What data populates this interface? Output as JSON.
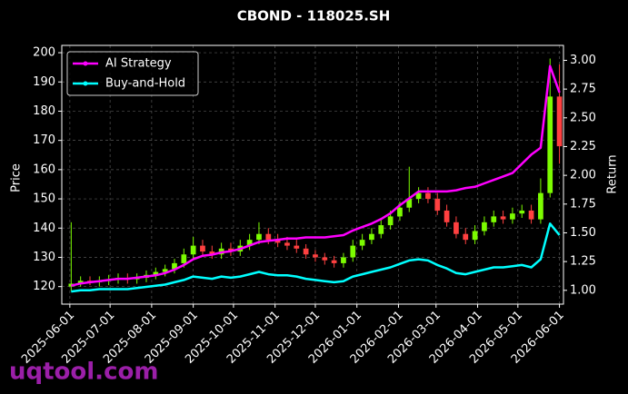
{
  "chart_data": {
    "type": "candlestick",
    "title": "CBOND - 118025.SH",
    "ylabel": "Price",
    "y2label": "Return",
    "watermark": "uqtool.com",
    "x": [
      "2025-06-02",
      "2025-06-09",
      "2025-06-16",
      "2025-06-23",
      "2025-06-30",
      "2025-07-07",
      "2025-07-14",
      "2025-07-21",
      "2025-07-28",
      "2025-08-04",
      "2025-08-11",
      "2025-08-18",
      "2025-08-25",
      "2025-09-01",
      "2025-09-08",
      "2025-09-15",
      "2025-09-22",
      "2025-09-29",
      "2025-10-06",
      "2025-10-13",
      "2025-10-20",
      "2025-10-27",
      "2025-11-03",
      "2025-11-10",
      "2025-11-17",
      "2025-11-24",
      "2025-12-01",
      "2025-12-08",
      "2025-12-15",
      "2025-12-22",
      "2025-12-29",
      "2026-01-05",
      "2026-01-12",
      "2026-01-19",
      "2026-01-26",
      "2026-02-02",
      "2026-02-09",
      "2026-02-16",
      "2026-02-23",
      "2026-03-02",
      "2026-03-09",
      "2026-03-16",
      "2026-03-23",
      "2026-03-30",
      "2026-04-06",
      "2026-04-13",
      "2026-04-20",
      "2026-04-27",
      "2026-05-04",
      "2026-05-11",
      "2026-05-18",
      "2026-05-25",
      "2026-06-01"
    ],
    "open": [
      120,
      121,
      122,
      121.5,
      122,
      122.5,
      123,
      122.5,
      123,
      124,
      125,
      126,
      128,
      131,
      134,
      132,
      131,
      133,
      132,
      134,
      136,
      138,
      136,
      135,
      134,
      133,
      131,
      130,
      129,
      128,
      130,
      134,
      136,
      138,
      141,
      144,
      147,
      150,
      152,
      150,
      146,
      142,
      138,
      136,
      139,
      142,
      144,
      143,
      145,
      146,
      143,
      152,
      185
    ],
    "high": [
      142,
      123.5,
      123.5,
      123.5,
      124,
      124.5,
      124.5,
      124.5,
      125.5,
      126.5,
      127.5,
      129.5,
      133,
      137,
      136,
      134,
      135,
      135,
      136,
      138,
      142,
      140,
      138,
      137,
      136,
      134.5,
      132.5,
      131.5,
      130.5,
      131.5,
      136,
      138,
      140,
      143,
      146,
      149,
      161,
      154,
      154,
      152,
      148,
      144,
      140,
      141,
      144,
      146,
      146,
      147,
      148,
      148,
      157,
      198,
      196
    ],
    "low": [
      118.5,
      120,
      120.5,
      120,
      120.5,
      121,
      121,
      121,
      121.5,
      122.5,
      123.5,
      124.5,
      126.5,
      129.5,
      130.5,
      129.5,
      129.5,
      130.5,
      130.5,
      132.5,
      134.5,
      134.5,
      133.5,
      132.5,
      131.5,
      129.5,
      128.5,
      127.5,
      126.5,
      126.5,
      128.5,
      132.5,
      134.5,
      136.5,
      139.5,
      142.5,
      145.5,
      148.5,
      148.5,
      144.5,
      140.5,
      136.5,
      134.5,
      134.5,
      137.5,
      140.5,
      141.5,
      141.5,
      143.5,
      141.5,
      141.5,
      150.5,
      162
    ],
    "close": [
      121,
      122,
      121.5,
      122,
      122.5,
      123,
      122.5,
      123,
      124,
      125,
      126,
      128,
      131,
      134,
      132,
      131,
      133,
      132,
      134,
      136,
      138,
      136,
      135,
      134,
      133,
      131,
      130,
      129,
      128,
      130,
      134,
      136,
      138,
      141,
      144,
      147,
      150,
      152,
      150,
      146,
      142,
      138,
      136,
      139,
      142,
      144,
      143,
      145,
      146,
      143,
      152,
      185,
      168
    ],
    "up_color": "#7cfc00",
    "down_color": "#ff4040",
    "series": [
      {
        "name": "AI Strategy",
        "color": "#ff00ff",
        "axis": "y2",
        "values": [
          1.04,
          1.06,
          1.07,
          1.08,
          1.09,
          1.1,
          1.1,
          1.11,
          1.12,
          1.13,
          1.15,
          1.18,
          1.22,
          1.27,
          1.3,
          1.31,
          1.33,
          1.34,
          1.36,
          1.39,
          1.42,
          1.43,
          1.44,
          1.45,
          1.45,
          1.46,
          1.46,
          1.46,
          1.47,
          1.48,
          1.52,
          1.55,
          1.58,
          1.62,
          1.67,
          1.74,
          1.8,
          1.86,
          1.86,
          1.86,
          1.86,
          1.87,
          1.89,
          1.9,
          1.93,
          1.96,
          1.99,
          2.02,
          2.1,
          2.18,
          2.24,
          2.95,
          2.72
        ]
      },
      {
        "name": "Buy-and-Hold",
        "color": "#00ffff",
        "axis": "y2",
        "values": [
          0.99,
          1.0,
          1.0,
          1.01,
          1.01,
          1.01,
          1.01,
          1.02,
          1.03,
          1.04,
          1.05,
          1.07,
          1.09,
          1.12,
          1.11,
          1.1,
          1.12,
          1.11,
          1.12,
          1.14,
          1.16,
          1.14,
          1.13,
          1.13,
          1.12,
          1.1,
          1.09,
          1.08,
          1.07,
          1.08,
          1.12,
          1.14,
          1.16,
          1.18,
          1.2,
          1.23,
          1.26,
          1.27,
          1.26,
          1.22,
          1.19,
          1.15,
          1.14,
          1.16,
          1.18,
          1.2,
          1.2,
          1.21,
          1.22,
          1.2,
          1.27,
          1.58,
          1.48
        ]
      }
    ],
    "xlim": [
      "2025-05-26",
      "2026-06-04"
    ],
    "xticks": [
      "2025-06-01",
      "2025-07-01",
      "2025-08-01",
      "2025-09-01",
      "2025-10-01",
      "2025-11-01",
      "2025-12-01",
      "2026-01-01",
      "2026-02-01",
      "2026-03-01",
      "2026-04-01",
      "2026-05-01",
      "2026-06-01"
    ],
    "ylim": [
      114,
      202.5
    ],
    "yticks": [
      120,
      130,
      140,
      150,
      160,
      170,
      180,
      190,
      200
    ],
    "y2lim": [
      0.88,
      3.13
    ],
    "y2ticks": [
      {
        "value": 1,
        "label": "1.00"
      },
      {
        "value": 1.25,
        "label": "1.25"
      },
      {
        "value": 1.5,
        "label": "1.50"
      },
      {
        "value": 1.75,
        "label": "1.75"
      },
      {
        "value": 2,
        "label": "2.00"
      },
      {
        "value": 2.25,
        "label": "2.25"
      },
      {
        "value": 2.5,
        "label": "2.50"
      },
      {
        "value": 2.75,
        "label": "2.75"
      },
      {
        "value": 3,
        "label": "3.00"
      }
    ],
    "grid": true,
    "legend": "upper left"
  }
}
